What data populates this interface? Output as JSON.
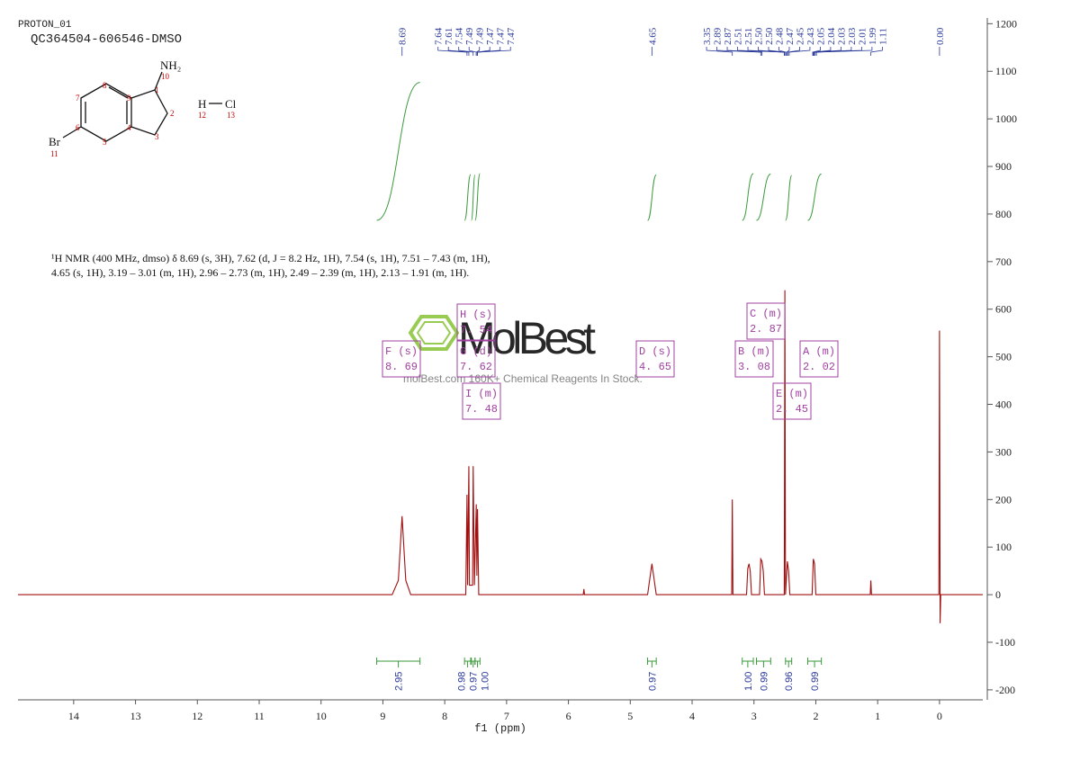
{
  "header": {
    "title": "PROTON_01",
    "sample": "QC364504-606546-DMSO"
  },
  "structure": {
    "labels": [
      "NH₂",
      "10",
      "1",
      "2",
      "3",
      "4",
      "5",
      "6",
      "7",
      "8",
      "9",
      "Br",
      "11",
      "H",
      "Cl",
      "12",
      "13"
    ]
  },
  "description": [
    "¹H NMR (400 MHz, dmso) δ 8.69 (s, 3H), 7.62 (d, J = 8.2 Hz, 1H), 7.54 (s, 1H), 7.51 – 7.43 (m, 1H),",
    "4.65 (s, 1H), 3.19 – 3.01 (m, 1H), 2.96 – 2.73 (m, 1H), 2.49 – 2.39 (m, 1H), 2.13 – 1.91 (m, 1H)."
  ],
  "watermark": {
    "brand": "MolBest",
    "tagline": "molBest.com 160K+ Chemical Reagents In Stock."
  },
  "chart_data": {
    "type": "line",
    "x_label": "f1 (ppm)",
    "x": [
      14.9,
      8.85,
      8.75,
      8.69,
      8.63,
      8.55,
      7.66,
      7.64,
      7.63,
      7.61,
      7.6,
      7.55,
      7.54,
      7.52,
      7.49,
      7.48,
      7.47,
      7.45,
      5.76,
      5.75,
      5.74,
      4.72,
      4.65,
      4.58,
      3.36,
      3.35,
      3.34,
      3.12,
      3.1,
      3.08,
      3.06,
      3.04,
      2.91,
      2.89,
      2.87,
      2.85,
      2.83,
      2.51,
      2.5,
      2.49,
      2.46,
      2.44,
      2.42,
      2.06,
      2.04,
      2.02,
      2.0,
      1.12,
      1.11,
      1.1,
      0.01,
      0.0,
      -0.01,
      -0.02,
      -0.7
    ],
    "series": [
      {
        "color": "#a01010",
        "values": [
          0,
          0,
          30,
          165,
          30,
          0,
          0,
          210,
          20,
          270,
          20,
          20,
          270,
          20,
          190,
          40,
          180,
          0,
          0,
          12,
          0,
          0,
          65,
          0,
          0,
          200,
          0,
          0,
          55,
          65,
          50,
          0,
          0,
          75,
          70,
          50,
          0,
          0,
          640,
          0,
          70,
          50,
          0,
          0,
          75,
          65,
          0,
          0,
          30,
          0,
          0,
          555,
          -60,
          0,
          0
        ]
      }
    ],
    "xlim": [
      14.9,
      -0.7
    ],
    "ylim": [
      -221,
      1212
    ],
    "xticks": [
      14,
      13,
      12,
      11,
      10,
      9,
      8,
      7,
      6,
      5,
      4,
      3,
      2,
      1,
      0
    ],
    "yticks": [
      -200,
      -100,
      0,
      100,
      200,
      300,
      400,
      500,
      600,
      700,
      800,
      900,
      1000,
      1100,
      1200
    ],
    "peaks": [
      8.69,
      7.64,
      7.61,
      7.54,
      7.49,
      7.49,
      7.47,
      7.47,
      7.47,
      4.65,
      3.35,
      2.89,
      2.87,
      2.51,
      2.51,
      {
        "value": 2.5,
        "label": "2.50"
      },
      {
        "value": 2.5,
        "label": "2.50"
      },
      2.48,
      2.47,
      2.45,
      2.43,
      2.05,
      2.04,
      2.03,
      2.03,
      2.01,
      1.99,
      1.11,
      {
        "value": 0,
        "label": "0.00"
      }
    ],
    "integrals": [
      {
        "value": 2.95,
        "from": 9.1,
        "to": 8.4
      },
      {
        "value": 0.98,
        "from": 7.68,
        "to": 7.58
      },
      {
        "value": 0.97,
        "from": 7.57,
        "to": 7.51
      },
      {
        "value": 1,
        "label": "1.00",
        "from": 7.51,
        "to": 7.43
      },
      {
        "value": 0.97,
        "from": 4.72,
        "to": 4.58
      },
      {
        "value": 1,
        "label": "1.00",
        "from": 3.19,
        "to": 3.01
      },
      {
        "value": 0.99,
        "from": 2.96,
        "to": 2.73
      },
      {
        "value": 0.96,
        "from": 2.49,
        "to": 2.39
      },
      {
        "value": 0.99,
        "from": 2.13,
        "to": 1.91
      }
    ],
    "multiplets": [
      {
        "label": "F (s)",
        "shift": {
          "value": 8.69,
          "label": "8. 69"
        }
      },
      {
        "label": "G (d)",
        "shift": {
          "value": 7.62,
          "label": "7. 62"
        }
      },
      {
        "label": "H (s)",
        "shift": {
          "value": 7.54,
          "label": "7. 54"
        }
      },
      {
        "label": "I (m)",
        "shift": {
          "value": 7.48,
          "label": "7. 48"
        }
      },
      {
        "label": "D (s)",
        "shift": {
          "value": 4.65,
          "label": "4. 65"
        }
      },
      {
        "label": "B (m)",
        "shift": {
          "value": 3.08,
          "label": "3. 08"
        }
      },
      {
        "label": "C (m)",
        "shift": {
          "value": 2.87,
          "label": "2. 87"
        }
      },
      {
        "label": "E (m)",
        "shift": {
          "value": 2.45,
          "label": "2. 45"
        }
      },
      {
        "label": "A (m)",
        "shift": {
          "value": 2.02,
          "label": "2. 02"
        }
      }
    ]
  }
}
